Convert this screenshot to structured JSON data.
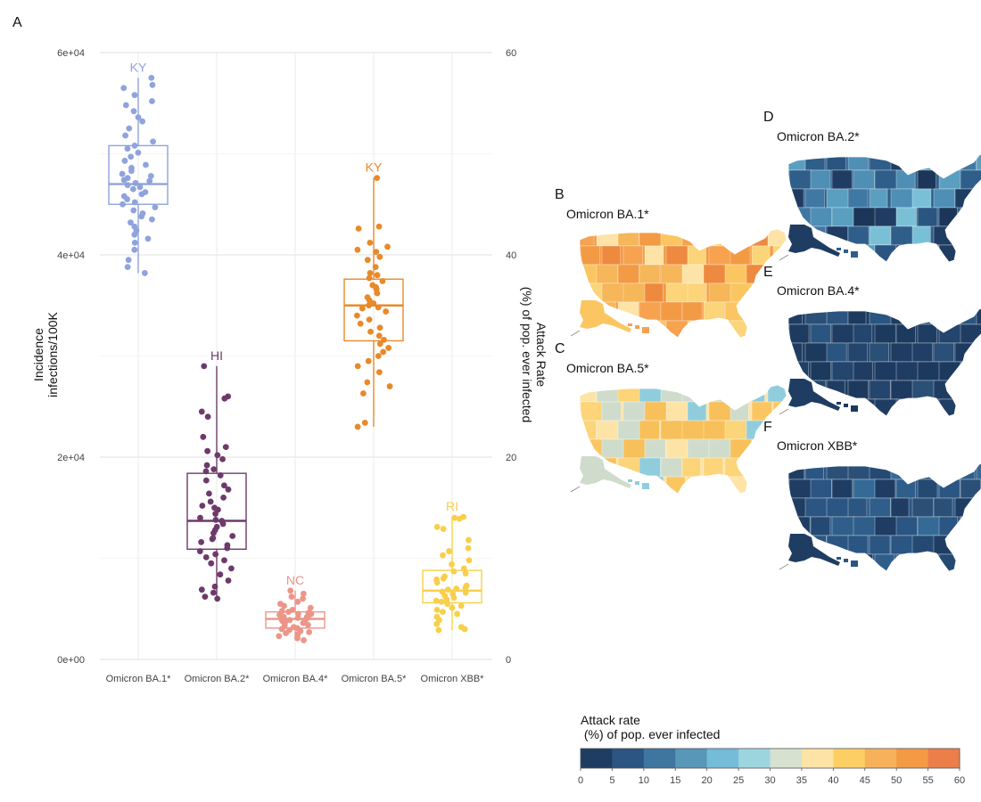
{
  "panel_letters": [
    "A",
    "B",
    "C",
    "D",
    "E",
    "F"
  ],
  "chart_data": [
    {
      "type": "box",
      "panel": "A",
      "categories": [
        "Omicron BA.1*",
        "Omicron BA.2*",
        "Omicron BA.4*",
        "Omicron BA.5*",
        "Omicron XBB*"
      ],
      "colors": [
        "#8fa3dc",
        "#6d3a6b",
        "#ec9589",
        "#e8892a",
        "#f7cf4a"
      ],
      "ylabel": "Incidence\ninfections/100K",
      "y2label": "Attack Rate\n(%) of pop. ever infected",
      "ylim": [
        0,
        60000
      ],
      "y_ticks": [
        "0e+00",
        "2e+04",
        "4e+04",
        "6e+04"
      ],
      "y_tick_values": [
        0,
        20000,
        40000,
        60000
      ],
      "y2lim": [
        0,
        60
      ],
      "y2_ticks": [
        "0",
        "20",
        "40",
        "60"
      ],
      "y2_tick_values": [
        0,
        20,
        40,
        60
      ],
      "grid": true,
      "boxes": [
        {
          "q1": 45000,
          "median": 47000,
          "q3": 50800,
          "wmin": 38200,
          "wmax": 57500
        },
        {
          "q1": 10900,
          "median": 13700,
          "q3": 18400,
          "wmin": 6000,
          "wmax": 29000
        },
        {
          "q1": 3100,
          "median": 4000,
          "q3": 4700,
          "wmin": 1900,
          "wmax": 6800
        },
        {
          "q1": 31500,
          "median": 35000,
          "q3": 37600,
          "wmin": 23000,
          "wmax": 47600
        },
        {
          "q1": 5600,
          "median": 6800,
          "q3": 8800,
          "wmin": 2900,
          "wmax": 14100
        }
      ],
      "max_labels": [
        "KY",
        "HI",
        "NC",
        "KY",
        "RI"
      ],
      "max_values": [
        57500,
        29000,
        6800,
        47600,
        14100
      ],
      "points": [
        [
          57500,
          56800,
          56500,
          55800,
          55200,
          54800,
          54200,
          53600,
          53200,
          52500,
          51800,
          51200,
          50800,
          50500,
          50100,
          49700,
          49300,
          48900,
          48600,
          48300,
          48000,
          47800,
          47600,
          47300,
          47100,
          46900,
          46700,
          46500,
          46200,
          46000,
          45800,
          45500,
          45200,
          45000,
          44700,
          44400,
          44100,
          43800,
          43500,
          43200,
          42800,
          42400,
          42000,
          41600,
          41200,
          40500,
          39500,
          38800,
          38200,
          47400
        ],
        [
          29000,
          26000,
          25800,
          24500,
          24000,
          22000,
          21000,
          20600,
          20200,
          19800,
          19200,
          18800,
          18600,
          18200,
          17700,
          17200,
          16800,
          16400,
          16000,
          15600,
          15200,
          14800,
          14400,
          14000,
          13700,
          13400,
          13100,
          12800,
          12500,
          12200,
          11900,
          11600,
          11300,
          11000,
          10700,
          10400,
          10100,
          9800,
          9500,
          9000,
          8400,
          7800,
          7200,
          6900,
          6600,
          6200,
          6000,
          15000,
          13800,
          12000
        ],
        [
          6800,
          6500,
          6200,
          6000,
          5700,
          5500,
          5300,
          5100,
          4900,
          4800,
          4700,
          4600,
          4500,
          4400,
          4300,
          4200,
          4100,
          4000,
          4000,
          3900,
          3800,
          3700,
          3600,
          3500,
          3400,
          3300,
          3200,
          3100,
          3000,
          2900,
          2800,
          2700,
          2600,
          2500,
          2300,
          2100,
          1900,
          4200,
          3700,
          4500
        ],
        [
          47600,
          42800,
          42600,
          41200,
          40800,
          40500,
          40300,
          39800,
          39500,
          38800,
          38200,
          37700,
          37400,
          37000,
          36600,
          36200,
          35800,
          35500,
          35200,
          35000,
          34700,
          34400,
          34000,
          33600,
          33200,
          32800,
          32400,
          32000,
          31600,
          31200,
          30800,
          30400,
          30000,
          29500,
          29000,
          28400,
          27400,
          27000,
          26300,
          23400,
          23000,
          34800,
          36800,
          38000
        ],
        [
          14100,
          14000,
          13900,
          13100,
          12900,
          11800,
          11000,
          10700,
          10300,
          9800,
          9400,
          9000,
          8700,
          8500,
          8200,
          7900,
          7600,
          7300,
          7100,
          6900,
          6700,
          6500,
          6300,
          6100,
          5900,
          5700,
          5500,
          5300,
          5100,
          4900,
          4700,
          4500,
          4200,
          3900,
          3500,
          3200,
          3000,
          2900,
          7000,
          6600,
          8000,
          5800
        ]
      ]
    },
    {
      "type": "choropleth",
      "panels": [
        {
          "letter": "B",
          "title": "Omicron BA.1*",
          "base": "#f39a45",
          "region_colors": [
            "#fbc661",
            "#f6a24f",
            "#ee8a3f",
            "#f6b65a",
            "#fcd479",
            "#e97a3a",
            "#f39a45",
            "#fde3a5"
          ]
        },
        {
          "letter": "C",
          "title": "Omicron BA.5*",
          "base": "#fde3a5",
          "region_colors": [
            "#cfdccb",
            "#8fcddd",
            "#fde3a5",
            "#f8c05a",
            "#fcd479",
            "#cfdccb",
            "#8fcddd",
            "#fbc661"
          ]
        },
        {
          "letter": "D",
          "title": "Omicron BA.2*",
          "base": "#2f5e8a",
          "region_colors": [
            "#1f3d63",
            "#2f5e8a",
            "#3f78a4",
            "#5a9fc0",
            "#79c0d7",
            "#2a5580",
            "#1b3658",
            "#4f8eb5"
          ]
        },
        {
          "letter": "E",
          "title": "Omicron BA.4*",
          "base": "#1f3d63",
          "region_colors": [
            "#1f3d63",
            "#1c3a5e",
            "#23456e",
            "#2a5078",
            "#1f3d63",
            "#203f66",
            "#2a5580",
            "#1d3a60"
          ]
        },
        {
          "letter": "F",
          "title": "Omicron XBB*",
          "base": "#2b5582",
          "region_colors": [
            "#1f3d63",
            "#2b5582",
            "#2f5e8a",
            "#244a74",
            "#2b5582",
            "#1f3d63",
            "#356a96",
            "#2a5078"
          ]
        }
      ]
    }
  ],
  "legend": {
    "title": "Attack rate\n (%) of pop. ever infected",
    "labels": [
      "0",
      "5",
      "10",
      "15",
      "20",
      "25",
      "30",
      "35",
      "40",
      "45",
      "50",
      "55",
      "60"
    ],
    "colors": [
      "#1f3d63",
      "#2b5582",
      "#3e76a0",
      "#5897b8",
      "#74bcd8",
      "#9dd5df",
      "#d6e1cf",
      "#fde3a5",
      "#fbcf63",
      "#f7b15a",
      "#f39a45",
      "#ec7e49"
    ]
  }
}
